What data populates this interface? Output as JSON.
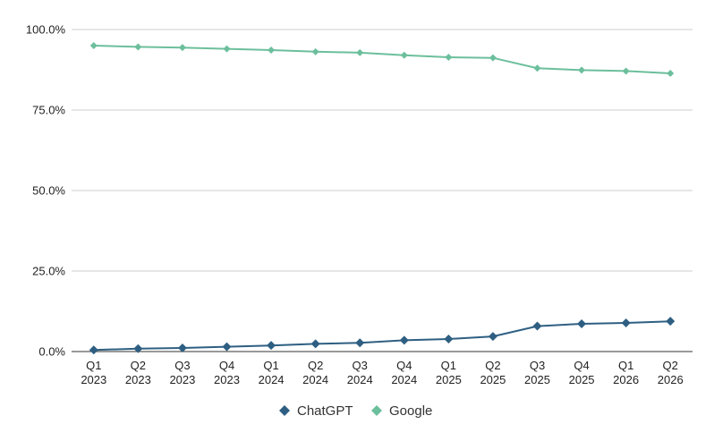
{
  "chart_data": {
    "type": "line",
    "categories": [
      [
        "Q1",
        "2023"
      ],
      [
        "Q2",
        "2023"
      ],
      [
        "Q3",
        "2023"
      ],
      [
        "Q4",
        "2023"
      ],
      [
        "Q1",
        "2024"
      ],
      [
        "Q2",
        "2024"
      ],
      [
        "Q3",
        "2024"
      ],
      [
        "Q4",
        "2024"
      ],
      [
        "Q1",
        "2025"
      ],
      [
        "Q2",
        "2025"
      ],
      [
        "Q3",
        "2025"
      ],
      [
        "Q4",
        "2025"
      ],
      [
        "Q1",
        "2026"
      ],
      [
        "Q2",
        "2026"
      ]
    ],
    "y_ticks": [
      "0.0%",
      "25.0%",
      "50.0%",
      "75.0%",
      "100.0%"
    ],
    "ylim": [
      0,
      100
    ],
    "grid": true,
    "legend_position": "bottom",
    "series": [
      {
        "name": "ChatGPT",
        "color": "#2e5f82",
        "values": [
          0.5,
          0.9,
          1.1,
          1.5,
          1.9,
          2.4,
          2.7,
          3.5,
          3.9,
          4.7,
          7.9,
          8.6,
          8.9,
          9.4
        ]
      },
      {
        "name": "Google",
        "color": "#6cbf9c",
        "values": [
          95.0,
          94.6,
          94.4,
          94.0,
          93.6,
          93.1,
          92.8,
          92.0,
          91.4,
          91.2,
          88.0,
          87.4,
          87.1,
          86.4
        ]
      }
    ]
  }
}
